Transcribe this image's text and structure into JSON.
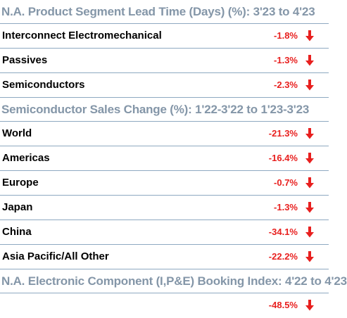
{
  "colors": {
    "header_text": "#8496a8",
    "rule": "#8ea9c1",
    "value_text": "#e8201f",
    "arrow": "#e8201f",
    "label_text": "#000000"
  },
  "sections": [
    {
      "header": "N.A. Product Segment Lead Time (Days) (%): 3'23 to 4'23",
      "rows": [
        {
          "label": "Interconnect Electromechanical",
          "value": "-1.8%",
          "icon": "down-arrow-icon"
        },
        {
          "label": "Passives",
          "value": "-1.3%",
          "icon": "down-arrow-icon"
        },
        {
          "label": "Semiconductors",
          "value": "-2.3%",
          "icon": "down-arrow-icon"
        }
      ]
    },
    {
      "header": "Semiconductor Sales Change (%): 1'22-3'22 to 1'23-3'23",
      "rows": [
        {
          "label": "World",
          "value": "-21.3%",
          "icon": "down-arrow-icon"
        },
        {
          "label": "Americas",
          "value": "-16.4%",
          "icon": "down-arrow-icon"
        },
        {
          "label": "Europe",
          "value": "-0.7%",
          "icon": "down-arrow-icon"
        },
        {
          "label": "Japan",
          "value": "-1.3%",
          "icon": "down-arrow-icon"
        },
        {
          "label": "China",
          "value": "-34.1%",
          "icon": "down-arrow-icon"
        },
        {
          "label": "Asia Pacific/All Other",
          "value": "-22.2%",
          "icon": "down-arrow-icon"
        }
      ]
    },
    {
      "header": "N.A. Electronic Component (I,P&E) Booking Index: 4'22 to 4'23",
      "rows": [
        {
          "label": "",
          "value": "-48.5%",
          "icon": "down-arrow-icon"
        }
      ]
    }
  ]
}
